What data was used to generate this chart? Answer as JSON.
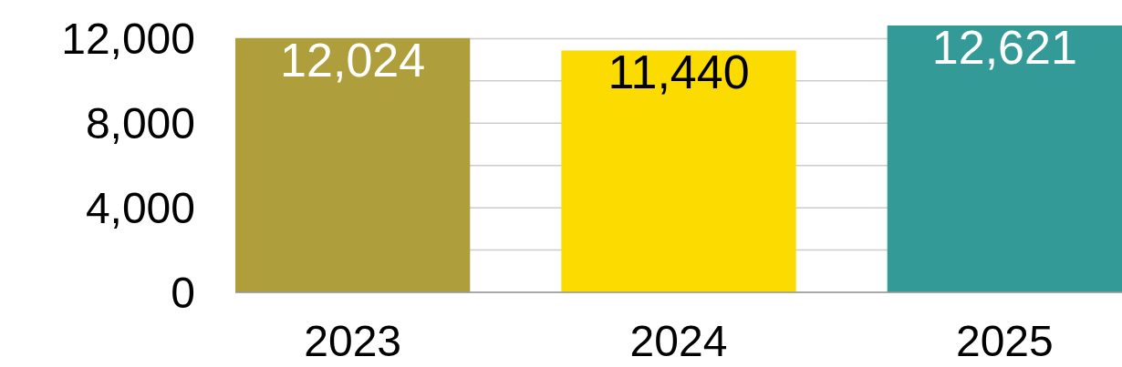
{
  "chart_data": {
    "type": "bar",
    "categories": [
      "2023",
      "2024",
      "2025"
    ],
    "values": [
      12024,
      11440,
      12621
    ],
    "value_labels": [
      "12,024",
      "11,440",
      "12,621"
    ],
    "colors": [
      "#ae9e3c",
      "#fcdc00",
      "#339a98"
    ],
    "ylim": [
      0,
      12621
    ],
    "yticks": [
      {
        "value": 0,
        "label": "0"
      },
      {
        "value": 2000,
        "label": null
      },
      {
        "value": 4000,
        "label": "4,000"
      },
      {
        "value": 6000,
        "label": null
      },
      {
        "value": 8000,
        "label": "8,000"
      },
      {
        "value": 10000,
        "label": null
      },
      {
        "value": 12000,
        "label": "12,000"
      }
    ],
    "grid": "y"
  }
}
